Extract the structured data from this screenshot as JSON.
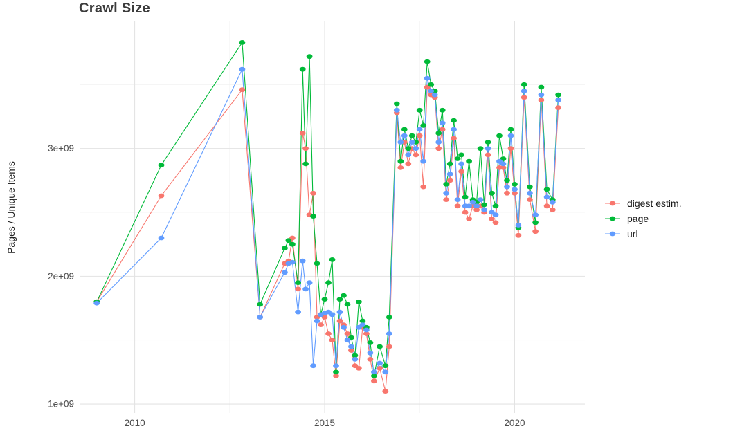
{
  "chart_data": {
    "type": "line",
    "title": "Crawl Size",
    "ylabel": "Pages / Unique Items",
    "xlabel": "",
    "legend_position": "right",
    "grid": true,
    "background": "#FFFFFF",
    "gridline_color": "#E3E3E3",
    "minor_gridline_color": "#F2F2F2",
    "tick_label_color": "#4D4D4D",
    "xlim": [
      2008.55,
      2021.85
    ],
    "ylim": [
      0.93,
      4.0
    ],
    "y_unit": 1000000000,
    "x_ticks": [
      {
        "value": 2010,
        "label": "2010"
      },
      {
        "value": 2015,
        "label": "2015"
      },
      {
        "value": 2020,
        "label": "2020"
      }
    ],
    "y_ticks": [
      {
        "value": 1,
        "label": "1e+09"
      },
      {
        "value": 2,
        "label": "2e+09"
      },
      {
        "value": 3,
        "label": "3e+09"
      }
    ],
    "x_minor": [
      2012.5,
      2017.5
    ],
    "y_minor": [
      1.5,
      2.5,
      3.5
    ],
    "x": [
      2009.0,
      2010.7,
      2012.83,
      2013.3,
      2013.95,
      2014.05,
      2014.15,
      2014.3,
      2014.42,
      2014.5,
      2014.6,
      2014.7,
      2014.8,
      2014.9,
      2015.0,
      2015.1,
      2015.2,
      2015.3,
      2015.4,
      2015.5,
      2015.6,
      2015.7,
      2015.8,
      2015.9,
      2016.0,
      2016.1,
      2016.2,
      2016.3,
      2016.45,
      2016.6,
      2016.7,
      2016.9,
      2017.0,
      2017.1,
      2017.2,
      2017.3,
      2017.4,
      2017.5,
      2017.6,
      2017.7,
      2017.8,
      2017.9,
      2018.0,
      2018.1,
      2018.2,
      2018.3,
      2018.4,
      2018.5,
      2018.6,
      2018.7,
      2018.8,
      2018.9,
      2019.0,
      2019.1,
      2019.2,
      2019.3,
      2019.4,
      2019.5,
      2019.6,
      2019.7,
      2019.8,
      2019.9,
      2020.0,
      2020.1,
      2020.25,
      2020.4,
      2020.55,
      2020.7,
      2020.85,
      2021.0,
      2021.15
    ],
    "series": [
      {
        "name": "digest estim.",
        "color": "#F8766D",
        "values": [
          1.8,
          2.63,
          3.46,
          1.68,
          2.1,
          2.12,
          2.3,
          1.9,
          3.12,
          3.0,
          2.48,
          2.65,
          1.68,
          1.62,
          1.68,
          1.55,
          1.5,
          1.22,
          1.65,
          1.62,
          1.55,
          1.42,
          1.3,
          1.28,
          1.6,
          1.55,
          1.35,
          1.18,
          1.28,
          1.1,
          1.45,
          3.28,
          2.85,
          3.05,
          2.88,
          3.0,
          2.95,
          3.1,
          2.7,
          3.48,
          3.42,
          3.4,
          3.0,
          3.15,
          2.6,
          2.75,
          3.08,
          2.55,
          2.82,
          2.5,
          2.45,
          2.55,
          2.52,
          2.55,
          2.5,
          2.95,
          2.45,
          2.42,
          2.85,
          2.85,
          2.65,
          3.0,
          2.65,
          2.32,
          3.4,
          2.6,
          2.35,
          3.38,
          2.55,
          2.52,
          3.32
        ]
      },
      {
        "name": "page",
        "color": "#00BA38",
        "values": [
          1.8,
          2.87,
          3.83,
          1.78,
          2.22,
          2.28,
          2.25,
          1.95,
          3.62,
          2.88,
          3.72,
          2.47,
          2.1,
          1.7,
          1.82,
          1.95,
          2.13,
          1.25,
          1.82,
          1.85,
          1.78,
          1.52,
          1.38,
          1.8,
          1.65,
          1.6,
          1.48,
          1.22,
          1.45,
          1.3,
          1.68,
          3.35,
          2.9,
          3.15,
          3.0,
          3.1,
          3.05,
          3.3,
          3.18,
          3.68,
          3.5,
          3.45,
          3.12,
          3.3,
          2.72,
          2.88,
          3.22,
          2.92,
          2.95,
          2.62,
          2.9,
          2.6,
          2.58,
          3.0,
          2.56,
          3.05,
          2.65,
          2.55,
          3.1,
          2.92,
          2.75,
          3.15,
          2.72,
          2.38,
          3.5,
          2.7,
          2.42,
          3.48,
          2.68,
          2.6,
          3.42
        ]
      },
      {
        "name": "url",
        "color": "#619CFF",
        "values": [
          1.79,
          2.3,
          3.62,
          1.68,
          2.03,
          2.1,
          2.11,
          1.72,
          2.12,
          1.9,
          1.95,
          1.3,
          1.65,
          1.7,
          1.71,
          1.72,
          1.7,
          1.3,
          1.72,
          1.6,
          1.5,
          1.45,
          1.35,
          1.6,
          1.62,
          1.58,
          1.4,
          1.25,
          1.32,
          1.25,
          1.55,
          3.3,
          3.05,
          3.1,
          2.95,
          3.05,
          3.0,
          3.15,
          2.9,
          3.55,
          3.45,
          3.42,
          3.05,
          3.2,
          2.65,
          2.8,
          3.15,
          2.6,
          2.88,
          2.55,
          2.55,
          2.58,
          2.55,
          2.6,
          2.52,
          3.0,
          2.5,
          2.48,
          2.9,
          2.88,
          2.7,
          3.1,
          2.68,
          2.4,
          3.45,
          2.65,
          2.48,
          3.42,
          2.62,
          2.58,
          3.38
        ]
      }
    ]
  }
}
